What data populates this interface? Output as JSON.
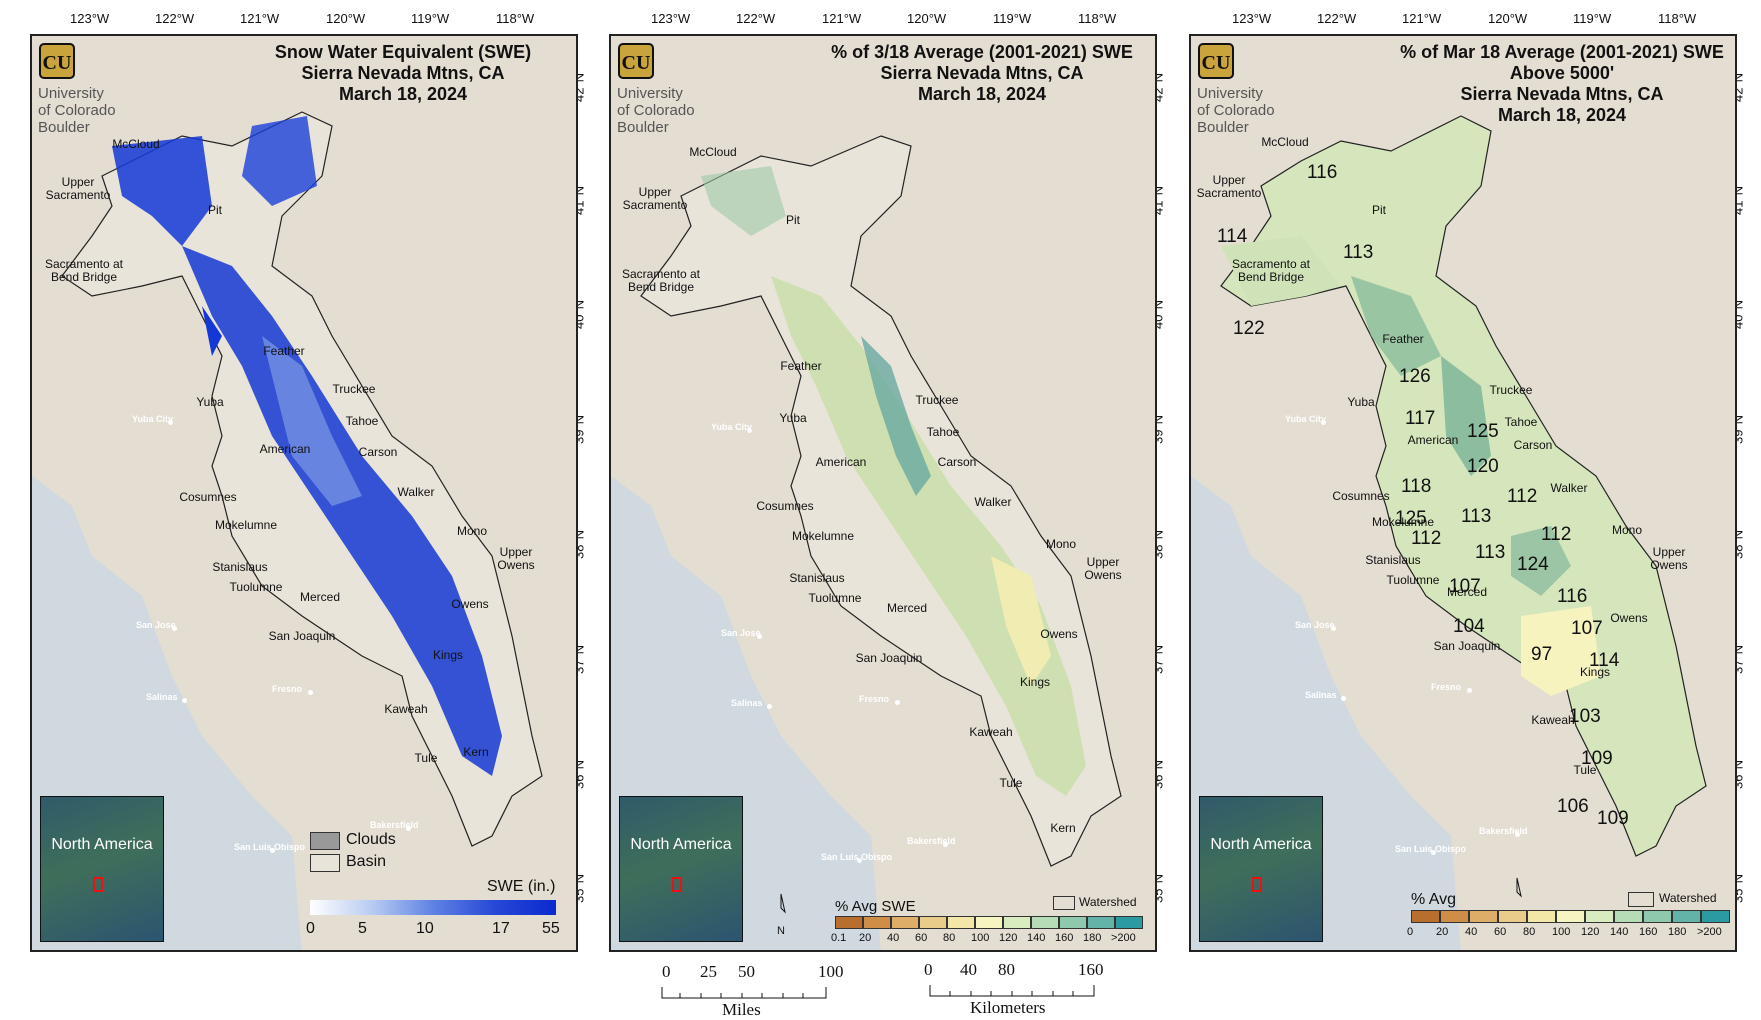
{
  "lon_ticks": [
    "123°W",
    "122°W",
    "121°W",
    "120°W",
    "119°W",
    "118°W"
  ],
  "lat_ticks": [
    "42°N",
    "41°N",
    "40°N",
    "39°N",
    "38°N",
    "37°N",
    "36°N",
    "35°N"
  ],
  "logo": {
    "line1": "University",
    "line2": "of Colorado",
    "line3": "Boulder",
    "icon": "cu-buffalo-logo"
  },
  "inset": {
    "label": "North\nAmerica"
  },
  "panels": [
    {
      "title": "Snow Water Equivalent (SWE)\nSierra Nevada Mtns, CA\nMarch 18, 2024"
    },
    {
      "title": "% of 3/18 Average (2001-2021) SWE\nSierra Nevada Mtns, CA\nMarch 18, 2024"
    },
    {
      "title": "% of Mar 18 Average (2001-2021) SWE\nAbove 5000'\nSierra Nevada Mtns, CA\nMarch 18, 2024"
    }
  ],
  "basins": [
    "McCloud",
    "Upper\nSacramento",
    "Pit",
    "Sacramento at\nBend Bridge",
    "Feather",
    "Yuba",
    "Truckee",
    "Tahoe",
    "American",
    "Carson",
    "Cosumnes",
    "Walker",
    "Mokelumne",
    "Mono",
    "Upper\nOwens",
    "Stanislaus",
    "Tuolumne",
    "Merced",
    "Owens",
    "San Joaquin",
    "Kings",
    "Kaweah",
    "Tule",
    "Kern"
  ],
  "cities": [
    "Yuba City",
    "San Jose",
    "Salinas",
    "Fresno",
    "San Luis Obispo",
    "Bakersfield"
  ],
  "pct_values": {
    "mccloud": "116",
    "upper_sacramento": "114",
    "pit": "113",
    "sacramento": "122",
    "feather": "126",
    "yuba": "117",
    "truckee": "125",
    "tahoe": "120",
    "american": "118",
    "carson": "112",
    "cosumnes": "125",
    "mokelumne_west": "112",
    "mokelumne": "113",
    "stanislaus_east": "113",
    "walker": "112",
    "walker_south": "124",
    "stanislaus": "107",
    "mono": "116",
    "tuolumne": "104",
    "upper_owens": "107",
    "san_joaquin": "97",
    "owens": "114",
    "kings": "103",
    "kaweah": "109",
    "tule": "106",
    "kern": "109"
  },
  "legend1": {
    "clouds": "Clouds",
    "basin": "Basin",
    "title": "SWE (in.)",
    "ticks": [
      "0",
      "5",
      "10",
      "17",
      "55"
    ],
    "colors": [
      "#ffffff",
      "#b8ccf2",
      "#5f82e4",
      "#2748d6",
      "#0a2ad0"
    ]
  },
  "legend2": {
    "title": "% Avg SWE",
    "watershed": "Watershed",
    "ticks": [
      "0.1",
      "20",
      "40",
      "60",
      "80",
      "100",
      "120",
      "140",
      "160",
      "180",
      ">200"
    ],
    "colors": [
      "#b86e2c",
      "#cf8e48",
      "#deae68",
      "#e9cc8a",
      "#f3e7a7",
      "#f6f4c0",
      "#d9ecc0",
      "#b6dcb5",
      "#8fc9ad",
      "#63b3a8",
      "#2c9aa1"
    ]
  },
  "legend3": {
    "title": "% Avg",
    "watershed": "Watershed",
    "ticks": [
      "0",
      "20",
      "40",
      "60",
      "80",
      "100",
      "120",
      "140",
      "160",
      "180",
      ">200"
    ],
    "colors": [
      "#b86e2c",
      "#cf8e48",
      "#deae68",
      "#e9cc8a",
      "#f3e7a7",
      "#f6f4c0",
      "#d9ecc0",
      "#b6dcb5",
      "#8fc9ad",
      "#63b3a8",
      "#2c9aa1"
    ]
  },
  "north": "N",
  "scale_miles": {
    "ticks": [
      "0",
      "25",
      "50",
      "100"
    ],
    "unit": "Miles"
  },
  "scale_km": {
    "ticks": [
      "0",
      "40",
      "80",
      "160"
    ],
    "unit": "Kilometers"
  }
}
